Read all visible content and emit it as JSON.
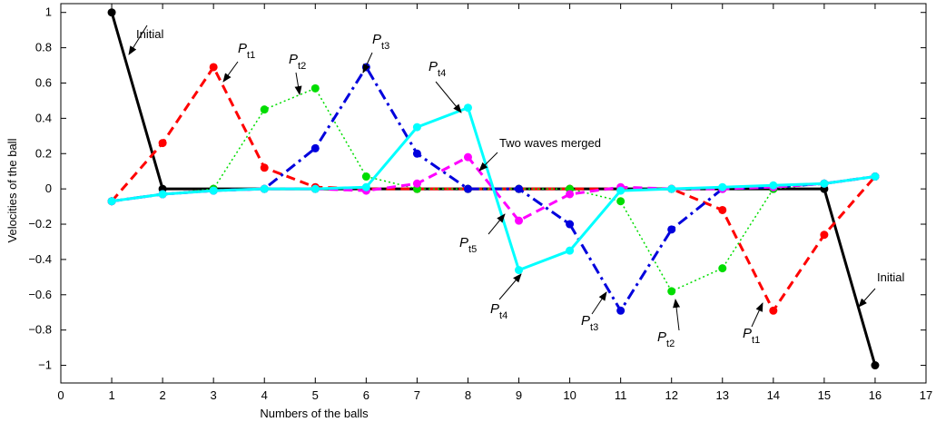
{
  "chart_data": {
    "type": "line",
    "title": "",
    "xlabel": "Numbers of the balls",
    "ylabel": "Velocities of the ball",
    "xlim": [
      0,
      17
    ],
    "ylim": [
      -1.1,
      1.05
    ],
    "xticks": [
      0,
      1,
      2,
      3,
      4,
      5,
      6,
      7,
      8,
      9,
      10,
      11,
      12,
      13,
      14,
      15,
      16,
      17
    ],
    "yticks": [
      -1,
      -0.8,
      -0.6,
      -0.4,
      -0.2,
      0,
      0.2,
      0.4,
      0.6,
      0.8,
      1
    ],
    "grid": false,
    "legend": "none",
    "x": [
      1,
      2,
      3,
      4,
      5,
      6,
      7,
      8,
      9,
      10,
      11,
      12,
      13,
      14,
      15,
      16
    ],
    "series": [
      {
        "name": "",
        "color": "#000000",
        "style": "solid",
        "width": 3,
        "values": [
          1,
          0,
          0,
          0,
          0,
          0,
          0,
          0,
          0,
          0,
          0,
          0,
          0,
          0,
          0,
          -1
        ]
      },
      {
        "name": "",
        "color": "#ff0000",
        "style": "dashed",
        "width": 3,
        "values": [
          -0.07,
          0.26,
          0.69,
          0.12,
          0.01,
          0,
          0,
          0,
          0,
          0,
          0,
          0,
          -0.12,
          -0.69,
          -0.26,
          0.07
        ]
      },
      {
        "name": "",
        "color": "#00dd00",
        "style": "dotted",
        "width": 1.5,
        "values": [
          -0.07,
          -0.03,
          0,
          0.45,
          0.57,
          0.07,
          0,
          0,
          0,
          0,
          -0.07,
          -0.58,
          -0.45,
          0,
          0.03,
          0.07
        ]
      },
      {
        "name": "",
        "color": "#0000dd",
        "style": "dashdot",
        "width": 3,
        "values": [
          -0.07,
          -0.03,
          -0.01,
          0,
          0.23,
          0.69,
          0.2,
          0,
          0,
          -0.2,
          -0.69,
          -0.23,
          0,
          0.01,
          0.03,
          0.07
        ]
      },
      {
        "name": "",
        "color": "#ff00ff",
        "style": "dashed",
        "width": 3,
        "values": [
          -0.07,
          -0.03,
          -0.01,
          0,
          0,
          -0.01,
          0.03,
          0.18,
          -0.18,
          -0.03,
          0.01,
          0,
          0,
          0.01,
          0.03,
          0.07
        ]
      },
      {
        "name": "",
        "color": "#00ffff",
        "style": "solid",
        "width": 3,
        "values": [
          -0.07,
          -0.03,
          -0.01,
          0,
          0,
          0.01,
          0.35,
          0.46,
          -0.46,
          -0.35,
          -0.01,
          0,
          0.01,
          0.02,
          0.03,
          0.07
        ]
      }
    ],
    "annotations": [
      {
        "label": "Initial",
        "sub": ""
      },
      {
        "label": "P",
        "sub": "t1"
      },
      {
        "label": "P",
        "sub": "t2"
      },
      {
        "label": "P",
        "sub": "t3"
      },
      {
        "label": "P",
        "sub": "t4"
      },
      {
        "label": "Two waves merged",
        "sub": ""
      },
      {
        "label": "P",
        "sub": "t5"
      },
      {
        "label": "P",
        "sub": "t4"
      },
      {
        "label": "P",
        "sub": "t3"
      },
      {
        "label": "P",
        "sub": "t2"
      },
      {
        "label": "P",
        "sub": "t1"
      },
      {
        "label": "Initial",
        "sub": ""
      }
    ]
  }
}
